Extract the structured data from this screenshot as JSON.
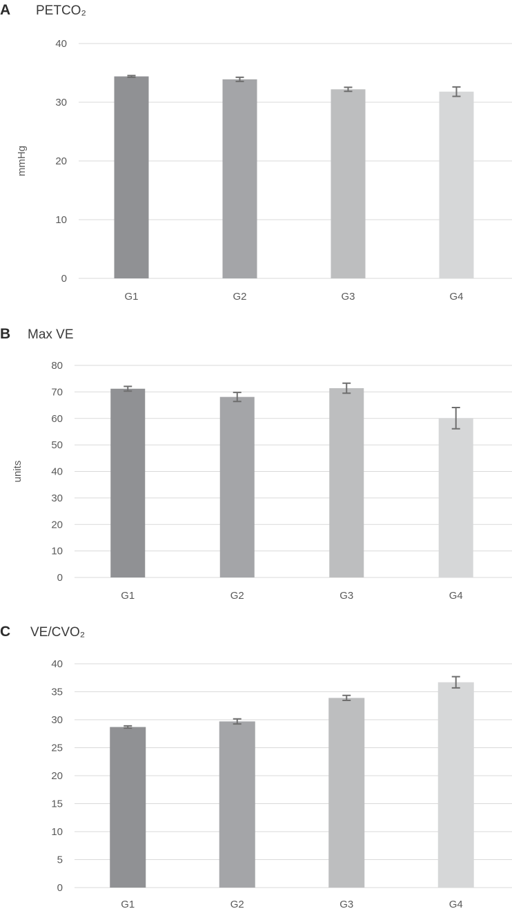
{
  "chart_data": [
    {
      "type": "bar",
      "panel": "A",
      "title": "PETCO₂",
      "xlabel": "",
      "ylabel": "mmHg",
      "categories": [
        "G1",
        "G2",
        "G3",
        "G4"
      ],
      "values": [
        34.4,
        33.9,
        32.2,
        31.8
      ],
      "errors": [
        0.15,
        0.35,
        0.35,
        0.8
      ],
      "ylim": [
        0,
        40
      ],
      "yticks": [
        0,
        10,
        20,
        30,
        40
      ],
      "grid": true,
      "colors": [
        "#909194",
        "#a4a5a8",
        "#bdbebf",
        "#d6d7d8"
      ]
    },
    {
      "type": "bar",
      "panel": "B",
      "title": "Max VE",
      "xlabel": "",
      "ylabel": "units",
      "categories": [
        "G1",
        "G2",
        "G3",
        "G4"
      ],
      "values": [
        71.2,
        68.1,
        71.4,
        60.1
      ],
      "errors": [
        0.9,
        1.7,
        1.9,
        4.0
      ],
      "ylim": [
        0,
        80
      ],
      "yticks": [
        0,
        10,
        20,
        30,
        40,
        50,
        60,
        70,
        80
      ],
      "grid": true,
      "colors": [
        "#909194",
        "#a4a5a8",
        "#bdbebf",
        "#d6d7d8"
      ]
    },
    {
      "type": "bar",
      "panel": "C",
      "title": "VE/CVO₂",
      "xlabel": "",
      "ylabel": "",
      "categories": [
        "G1",
        "G2",
        "G3",
        "G4"
      ],
      "values": [
        28.7,
        29.7,
        33.9,
        36.7
      ],
      "errors": [
        0.2,
        0.45,
        0.45,
        1.0
      ],
      "ylim": [
        0,
        40
      ],
      "yticks": [
        0,
        5,
        10,
        15,
        20,
        25,
        30,
        35,
        40
      ],
      "grid": true,
      "colors": [
        "#909194",
        "#a4a5a8",
        "#bdbebf",
        "#d6d7d8"
      ]
    }
  ]
}
